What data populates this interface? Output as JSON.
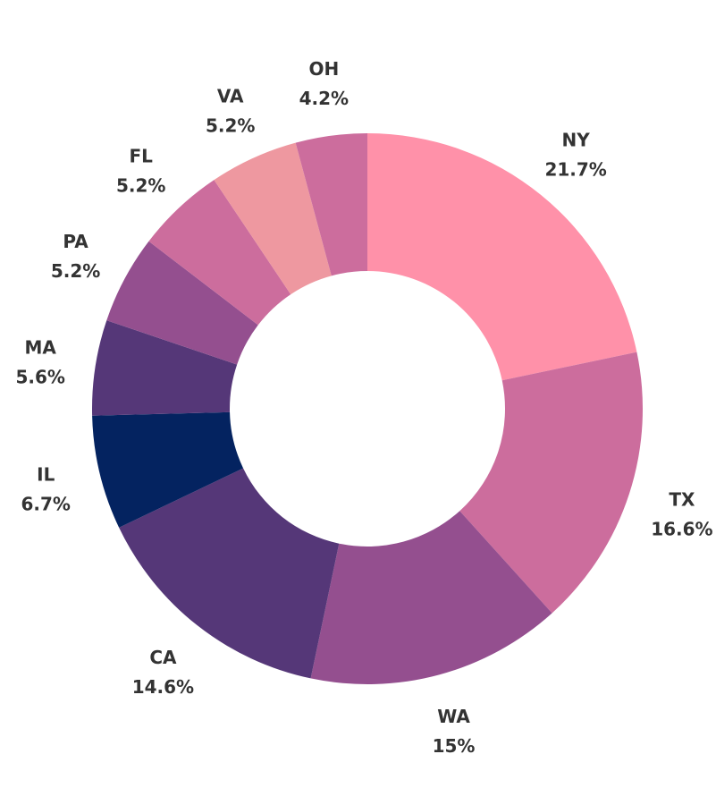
{
  "chart_data": {
    "type": "pie",
    "donut": true,
    "title": "",
    "categories": [
      "NY",
      "TX",
      "WA",
      "CA",
      "IL",
      "MA",
      "PA",
      "FL",
      "VA",
      "OH"
    ],
    "values": [
      21.7,
      16.6,
      15,
      14.6,
      6.7,
      5.6,
      5.2,
      5.2,
      5.2,
      4.2
    ],
    "value_labels": [
      "21.7%",
      "16.6%",
      "15%",
      "14.6%",
      "6.7%",
      "5.6%",
      "5.2%",
      "5.2%",
      "5.2%",
      "4.2%"
    ],
    "unit": "%",
    "start_angle": "12 o'clock",
    "direction": "clockwise",
    "colors": [
      "#ff91a9",
      "#cc6d9d",
      "#944f8f",
      "#553778",
      "#042360",
      "#553778",
      "#944f8f",
      "#cc6d9d",
      "#ee98a0",
      "#cc6d9d"
    ],
    "legend": "none (labels outside slices)"
  }
}
